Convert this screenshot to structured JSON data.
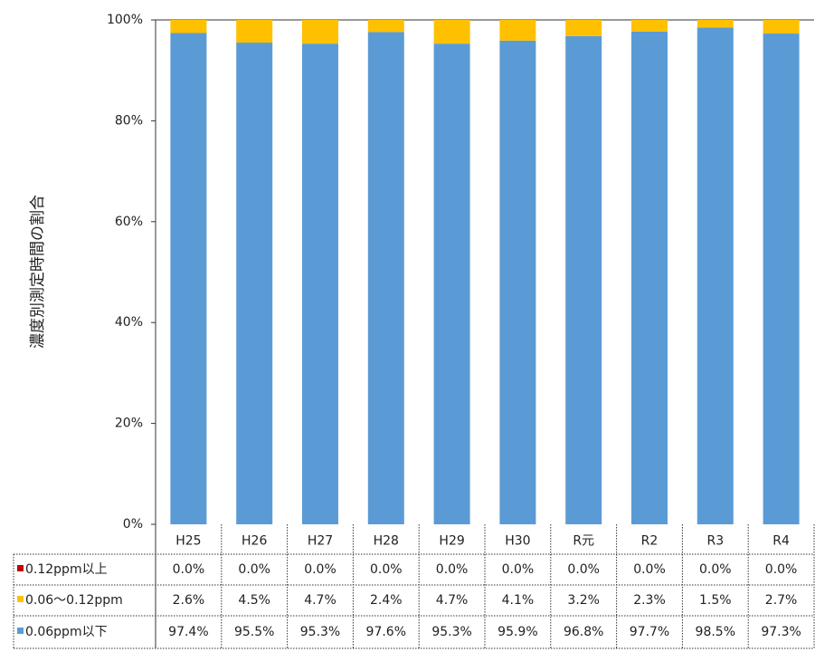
{
  "chart_data": {
    "type": "stacked-bar",
    "y_label": "濃度別測定時間の割合",
    "categories": [
      "H25",
      "H26",
      "H27",
      "H28",
      "H29",
      "H30",
      "R元",
      "R2",
      "R3",
      "R4"
    ],
    "series": [
      {
        "name": "0.06ppm以下",
        "color": "#5b9bd5",
        "values": [
          97.4,
          95.5,
          95.3,
          97.6,
          95.3,
          95.9,
          96.8,
          97.7,
          98.5,
          97.3
        ],
        "value_labels": [
          "97.4%",
          "95.5%",
          "95.3%",
          "97.6%",
          "95.3%",
          "95.9%",
          "96.8%",
          "97.7%",
          "98.5%",
          "97.3%"
        ]
      },
      {
        "name": "0.06～0.12ppm",
        "color": "#ffc000",
        "values": [
          2.6,
          4.5,
          4.7,
          2.4,
          4.7,
          4.1,
          3.2,
          2.3,
          1.5,
          2.7
        ],
        "value_labels": [
          "2.6%",
          "4.5%",
          "4.7%",
          "2.4%",
          "4.7%",
          "4.1%",
          "3.2%",
          "2.3%",
          "1.5%",
          "2.7%"
        ]
      },
      {
        "name": "0.12ppm以上",
        "color": "#c00000",
        "values": [
          0.0,
          0.0,
          0.0,
          0.0,
          0.0,
          0.0,
          0.0,
          0.0,
          0.0,
          0.0
        ],
        "value_labels": [
          "0.0%",
          "0.0%",
          "0.0%",
          "0.0%",
          "0.0%",
          "0.0%",
          "0.0%",
          "0.0%",
          "0.0%",
          "0.0%"
        ]
      }
    ],
    "ylim": [
      0,
      100
    ],
    "yticks": [
      {
        "value": 0,
        "label": "0%"
      },
      {
        "value": 20,
        "label": "20%"
      },
      {
        "value": 40,
        "label": "40%"
      },
      {
        "value": 60,
        "label": "60%"
      },
      {
        "value": 80,
        "label": "80%"
      },
      {
        "value": 100,
        "label": "100%"
      }
    ]
  }
}
